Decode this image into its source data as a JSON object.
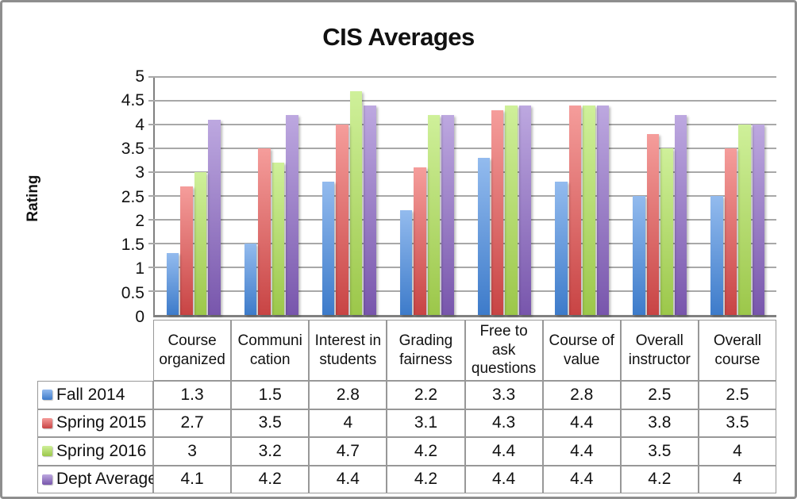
{
  "chart_data": {
    "type": "bar",
    "title": "CIS Averages",
    "xlabel": "",
    "ylabel": "Rating",
    "ylim": [
      0,
      5
    ],
    "ytick_step": 0.5,
    "yticks": [
      "5",
      "4.5",
      "4",
      "3.5",
      "3",
      "2.5",
      "2",
      "1.5",
      "1",
      "0.5",
      "0"
    ],
    "grid": true,
    "legend_position": "table-left-column",
    "categories": [
      "Course organized",
      "Communi cation",
      "Interest in students",
      "Grading fairness",
      "Free to ask questions",
      "Course of value",
      "Overall instructor",
      "Overall course"
    ],
    "series": [
      {
        "name": "Fall 2014",
        "color": "#4e81c8",
        "color_top": "#93bbee",
        "color_bottom": "#3d7bca",
        "values": [
          1.3,
          1.5,
          2.8,
          2.2,
          3.3,
          2.8,
          2.5,
          2.5
        ]
      },
      {
        "name": "Spring 2015",
        "color": "#d84c4c",
        "color_top": "#f59d9b",
        "color_bottom": "#c84444",
        "values": [
          2.7,
          3.5,
          4,
          3.1,
          4.3,
          4.4,
          3.8,
          3.5
        ]
      },
      {
        "name": "Spring 2016",
        "color": "#a2cc52",
        "color_top": "#cff09a",
        "color_bottom": "#9cc74a",
        "values": [
          3,
          3.2,
          4.7,
          4.2,
          4.4,
          4.4,
          3.5,
          4
        ]
      },
      {
        "name": "Dept Average",
        "color": "#8866bd",
        "color_top": "#bda8e0",
        "color_bottom": "#7856ac",
        "values": [
          4.1,
          4.2,
          4.4,
          4.2,
          4.4,
          4.4,
          4.2,
          4
        ]
      }
    ]
  },
  "style": {
    "frame_border_color": "#8e8e8e",
    "grid_color": "#a8a8a8",
    "axis_color": "#808080",
    "table_border_color": "#989898"
  }
}
